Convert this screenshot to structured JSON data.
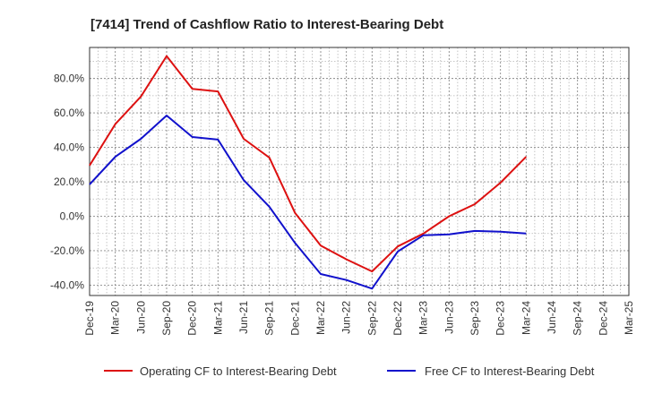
{
  "chart_data": {
    "type": "line",
    "title": "[7414]  Trend of Cashflow Ratio to Interest-Bearing Debt",
    "xlabel": "",
    "ylabel": "",
    "x": [
      "Dec-19",
      "Mar-20",
      "Jun-20",
      "Sep-20",
      "Dec-20",
      "Mar-21",
      "Jun-21",
      "Sep-21",
      "Dec-21",
      "Mar-22",
      "Jun-22",
      "Sep-22",
      "Dec-22",
      "Mar-23",
      "Jun-23",
      "Sep-23",
      "Dec-23",
      "Mar-24",
      "Jun-24",
      "Sep-24",
      "Dec-24",
      "Mar-25"
    ],
    "x_tick_labels": [
      "Dec-19",
      "Mar-20",
      "Jun-20",
      "Sep-20",
      "Dec-20",
      "Mar-21",
      "Jun-21",
      "Sep-21",
      "Dec-21",
      "Mar-22",
      "Jun-22",
      "Sep-22",
      "Dec-22",
      "Mar-23",
      "Jun-23",
      "Sep-23",
      "Dec-23",
      "Mar-24",
      "Jun-24",
      "Sep-24",
      "Dec-24",
      "Mar-25"
    ],
    "y_ticks": [
      80,
      60,
      40,
      20,
      0,
      -20,
      -40
    ],
    "y_tick_labels": [
      "80.0%",
      "60.0%",
      "40.0%",
      "20.0%",
      "0.0%",
      "-20.0%",
      "-40.0%"
    ],
    "ylim": [
      -46,
      98
    ],
    "grid": true,
    "legend_position": "bottom",
    "series": [
      {
        "name": "Operating CF to Interest-Bearing Debt",
        "color": "#dd1111",
        "values": [
          29.5,
          53.5,
          69.5,
          93.0,
          74.0,
          72.5,
          45.0,
          34.0,
          2.0,
          -17.0,
          -25.0,
          -32.0,
          -17.5,
          -10.0,
          0.0,
          7.0,
          19.5,
          34.5,
          null,
          null,
          null,
          null
        ]
      },
      {
        "name": "Free CF to Interest-Bearing Debt",
        "color": "#1111cc",
        "values": [
          18.5,
          34.5,
          45.0,
          58.5,
          46.0,
          44.5,
          21.0,
          5.5,
          -15.5,
          -33.5,
          -37.0,
          -42.0,
          -20.5,
          -11.0,
          -10.5,
          -8.5,
          -9.0,
          -10.0,
          null,
          null,
          null,
          null
        ]
      }
    ]
  }
}
